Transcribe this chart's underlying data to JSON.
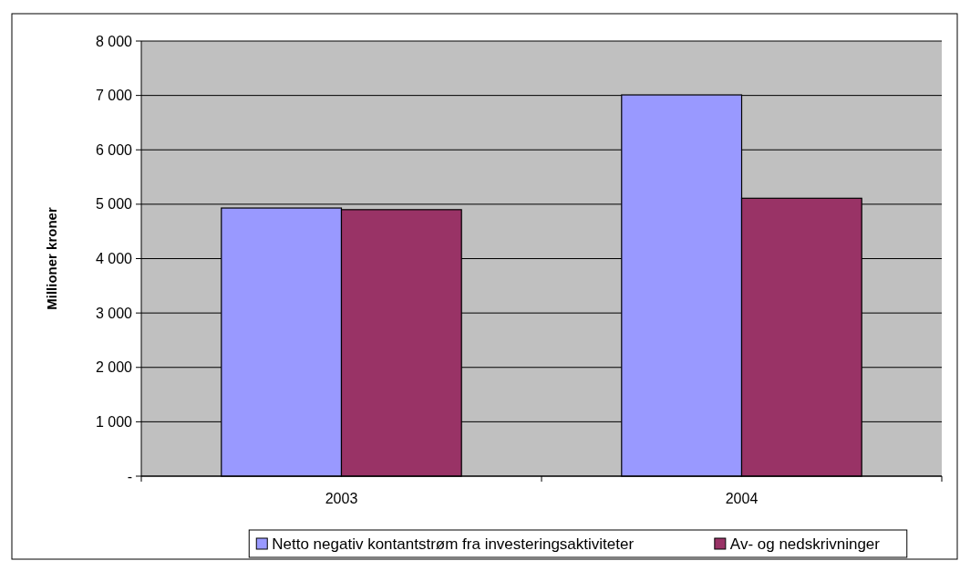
{
  "chart_data": {
    "type": "bar",
    "ylabel": "Millioner kroner",
    "categories": [
      "2003",
      "2004"
    ],
    "series": [
      {
        "name": "Netto negativ kontantstrøm fra investeringsaktiviteter",
        "color": "#9999ff",
        "values": [
          4930,
          7010
        ]
      },
      {
        "name": "Av- og nedskrivninger",
        "color": "#993366",
        "values": [
          4900,
          5110
        ]
      }
    ],
    "ylim": [
      0,
      8000
    ],
    "yticks": [
      {
        "value": 0,
        "label": "-"
      },
      {
        "value": 1000,
        "label": "1 000"
      },
      {
        "value": 2000,
        "label": "2 000"
      },
      {
        "value": 3000,
        "label": "3 000"
      },
      {
        "value": 4000,
        "label": "4 000"
      },
      {
        "value": 5000,
        "label": "5 000"
      },
      {
        "value": 6000,
        "label": "6 000"
      },
      {
        "value": 7000,
        "label": "7 000"
      },
      {
        "value": 8000,
        "label": "8 000"
      }
    ],
    "grid": "y",
    "legend": "bottom"
  }
}
